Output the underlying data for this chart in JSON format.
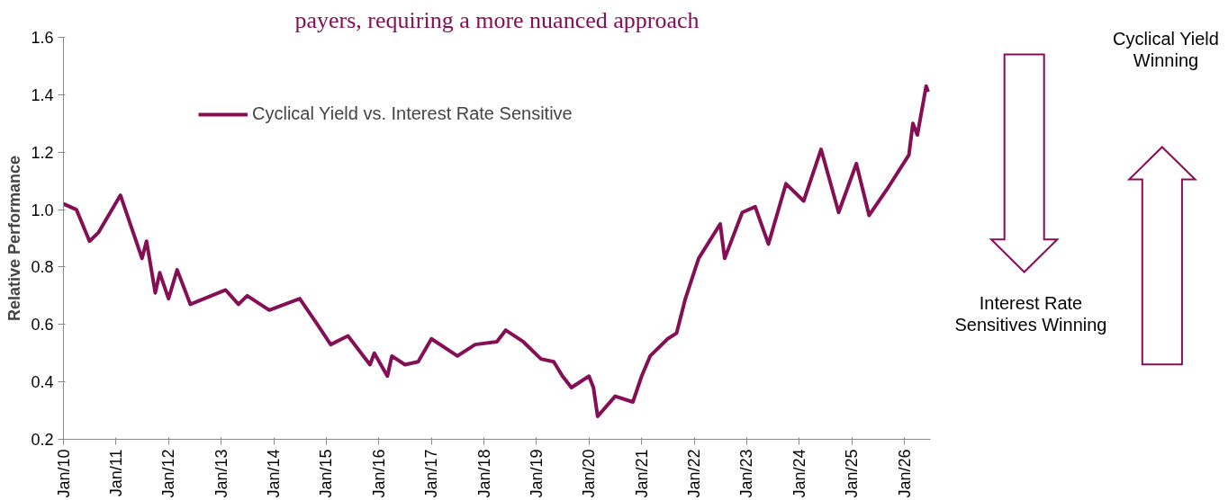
{
  "chart_data": {
    "type": "line",
    "title": "payers, requiring a more nuanced approach",
    "ylabel": "Relative Performance",
    "x": [
      "2010-01",
      "2010-04",
      "2010-07",
      "2010-09",
      "2011-02",
      "2011-07",
      "2011-08",
      "2011-10",
      "2011-11",
      "2012-01",
      "2012-03",
      "2012-06",
      "2013-02",
      "2013-05",
      "2013-07",
      "2013-12",
      "2014-07",
      "2014-11",
      "2015-02",
      "2015-06",
      "2015-11",
      "2015-12",
      "2016-03",
      "2016-04",
      "2016-07",
      "2016-10",
      "2017-01",
      "2017-07",
      "2017-11",
      "2018-04",
      "2018-06",
      "2018-10",
      "2019-02",
      "2019-05",
      "2019-07",
      "2019-09",
      "2020-01",
      "2020-02",
      "2020-03",
      "2020-07",
      "2020-11",
      "2021-01",
      "2021-03",
      "2021-07",
      "2021-09",
      "2021-11",
      "2022-02",
      "2022-07",
      "2022-08",
      "2022-12",
      "2023-03",
      "2023-06",
      "2023-10",
      "2024-02",
      "2024-06",
      "2024-10",
      "2025-02",
      "2025-05",
      "2025-09",
      "2026-02",
      "2026-03",
      "2026-04",
      "2026-06",
      "2026-06-15"
    ],
    "series": [
      {
        "name": "Cyclical Yield vs. Interest Rate Sensitive",
        "color": "#850f55",
        "values": [
          1.02,
          1.0,
          0.89,
          0.92,
          1.05,
          0.83,
          0.89,
          0.71,
          0.78,
          0.69,
          0.79,
          0.67,
          0.72,
          0.67,
          0.7,
          0.65,
          0.69,
          0.6,
          0.53,
          0.56,
          0.46,
          0.5,
          0.42,
          0.49,
          0.46,
          0.47,
          0.55,
          0.49,
          0.53,
          0.54,
          0.58,
          0.54,
          0.48,
          0.47,
          0.42,
          0.38,
          0.42,
          0.38,
          0.28,
          0.35,
          0.33,
          0.42,
          0.49,
          0.55,
          0.57,
          0.69,
          0.83,
          0.95,
          0.83,
          0.99,
          1.01,
          0.88,
          1.09,
          1.03,
          1.21,
          0.99,
          1.16,
          0.98,
          1.07,
          1.19,
          1.3,
          1.26,
          1.43,
          1.41
        ]
      }
    ],
    "xlim": [
      "2010-01",
      "2026-07"
    ],
    "xticks": [
      {
        "value": "2010-01",
        "label": "Jan/10"
      },
      {
        "value": "2011-01",
        "label": "Jan/11"
      },
      {
        "value": "2012-01",
        "label": "Jan/12"
      },
      {
        "value": "2013-01",
        "label": "Jan/13"
      },
      {
        "value": "2014-01",
        "label": "Jan/14"
      },
      {
        "value": "2015-01",
        "label": "Jan/15"
      },
      {
        "value": "2016-01",
        "label": "Jan/16"
      },
      {
        "value": "2017-01",
        "label": "Jan/17"
      },
      {
        "value": "2018-01",
        "label": "Jan/18"
      },
      {
        "value": "2019-01",
        "label": "Jan/19"
      },
      {
        "value": "2020-01",
        "label": "Jan/20"
      },
      {
        "value": "2021-01",
        "label": "Jan/21"
      },
      {
        "value": "2022-01",
        "label": "Jan/22"
      },
      {
        "value": "2023-01",
        "label": "Jan/23"
      },
      {
        "value": "2024-01",
        "label": "Jan/24"
      },
      {
        "value": "2025-01",
        "label": "Jan/25"
      },
      {
        "value": "2026-01",
        "label": "Jan/26"
      }
    ],
    "ylim": [
      0.2,
      1.6
    ],
    "yticks": [
      0.2,
      0.4,
      0.6,
      0.8,
      {
        "value": 1.0,
        "label": "1.0"
      },
      1.2,
      1.4,
      1.6
    ],
    "annotations": [
      "Cyclical Yield\nWinning",
      "Interest Rate\nSensitives Winning"
    ],
    "legend": "top left",
    "grid": false,
    "marker": "none",
    "line_style": "solid"
  }
}
